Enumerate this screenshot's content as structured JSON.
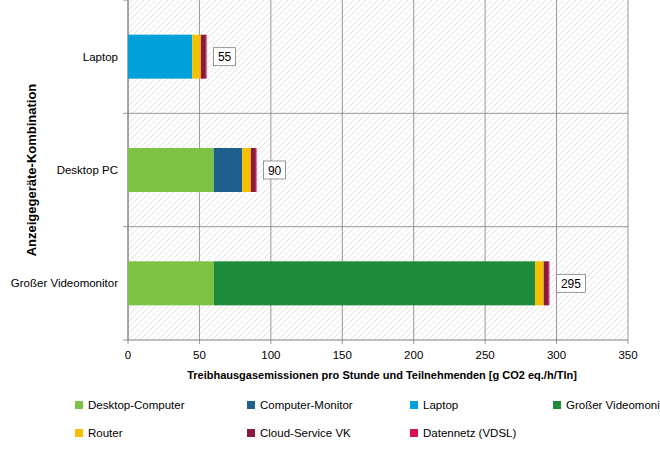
{
  "chart_data": {
    "type": "bar",
    "orientation": "horizontal",
    "stacked": true,
    "grid": true,
    "legend": "bottom",
    "x_label": "Treibhausgasemissionen pro Stunde und Teilnehmenden [g CO2 eq./h/Tln]",
    "y_label": "Anzeigegeräte-Kombination",
    "categories": [
      "Laptop",
      "Desktop PC",
      "Großer Videomonitor"
    ],
    "series": [
      {
        "name": "Desktop-Computer",
        "color": "#7dc242",
        "values": [
          0,
          60,
          60
        ]
      },
      {
        "name": "Computer-Monitor",
        "color": "#1f5f8b",
        "values": [
          0,
          20,
          0
        ]
      },
      {
        "name": "Laptop",
        "color": "#00a0d8",
        "values": [
          45,
          0,
          0
        ]
      },
      {
        "name": "Großer Videomonitor",
        "color": "#1e8b3c",
        "values": [
          0,
          0,
          225
        ]
      },
      {
        "name": "Router",
        "color": "#f5c000",
        "values": [
          6,
          6,
          6
        ]
      },
      {
        "name": "Cloud-Service VK",
        "color": "#8b1a3a",
        "values": [
          3.5,
          3.5,
          3.5
        ]
      },
      {
        "name": "Datennetz (VDSL)",
        "color": "#d4145a",
        "values": [
          0.5,
          0.5,
          0.5
        ]
      }
    ],
    "totals": [
      55,
      90,
      295
    ],
    "xlim": [
      0,
      350
    ],
    "xticks": [
      0,
      50,
      100,
      150,
      200,
      250,
      300,
      350
    ]
  }
}
